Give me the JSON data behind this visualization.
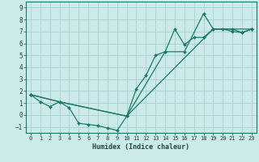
{
  "title": "",
  "xlabel": "Humidex (Indice chaleur)",
  "ylabel": "",
  "bg_color": "#cceae7",
  "grid_color": "#aad4d0",
  "line_color": "#1a7a6a",
  "xlim": [
    -0.5,
    23.5
  ],
  "ylim": [
    -1.5,
    9.5
  ],
  "xticks": [
    0,
    1,
    2,
    3,
    4,
    5,
    6,
    7,
    8,
    9,
    10,
    11,
    12,
    13,
    14,
    15,
    16,
    17,
    18,
    19,
    20,
    21,
    22,
    23
  ],
  "yticks": [
    -1,
    0,
    1,
    2,
    3,
    4,
    5,
    6,
    7,
    8,
    9
  ],
  "series": [
    {
      "x": [
        0,
        1,
        2,
        3,
        4,
        5,
        6,
        7,
        8,
        9,
        10,
        11,
        12,
        13,
        14,
        15,
        16,
        17,
        18,
        19,
        20,
        21,
        22,
        23
      ],
      "y": [
        1.7,
        1.1,
        0.7,
        1.1,
        0.6,
        -0.7,
        -0.8,
        -0.9,
        -1.1,
        -1.3,
        -0.1,
        2.2,
        3.3,
        5.0,
        5.3,
        7.2,
        5.9,
        6.5,
        6.5,
        7.2,
        7.2,
        7.0,
        6.9,
        7.2
      ]
    },
    {
      "x": [
        0,
        3,
        10,
        14,
        16,
        18,
        19,
        21,
        22,
        23
      ],
      "y": [
        1.7,
        1.1,
        -0.1,
        5.3,
        5.3,
        8.5,
        7.2,
        7.2,
        6.9,
        7.2
      ]
    },
    {
      "x": [
        0,
        3,
        10,
        19,
        23
      ],
      "y": [
        1.7,
        1.1,
        -0.1,
        7.2,
        7.2
      ]
    }
  ]
}
